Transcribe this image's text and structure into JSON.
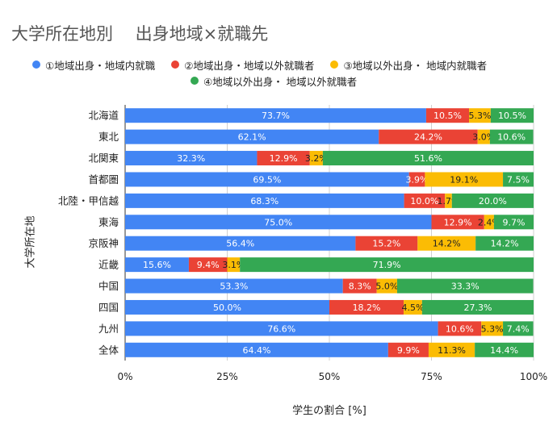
{
  "chart_data": {
    "type": "bar",
    "orientation": "horizontal",
    "stacked": "percent",
    "title": "大学所在地別　 出身地域×就職先",
    "xlabel": "学生の割合 [%]",
    "ylabel": "大学所在地",
    "xlim": [
      0,
      100
    ],
    "x_ticks": [
      "0%",
      "25%",
      "50%",
      "75%",
      "100%"
    ],
    "grid": true,
    "legend_position": "top",
    "categories": [
      "北海道",
      "東北",
      "北関東",
      "首都圏",
      "北陸・甲信越",
      "東海",
      "京阪神",
      "近畿",
      "中国",
      "四国",
      "九州",
      "全体"
    ],
    "series": [
      {
        "name": "①地域出身・地域内就職",
        "color": "#4285f4",
        "values": [
          73.7,
          62.1,
          32.3,
          69.5,
          68.3,
          75.0,
          56.4,
          15.6,
          53.3,
          50.0,
          76.6,
          64.4
        ],
        "labels": [
          "73.7%",
          "62.1%",
          "32.3%",
          "69.5%",
          "68.3%",
          "75.0%",
          "56.4%",
          "15.6%",
          "53.3%",
          "50.0%",
          "76.6%",
          "64.4%"
        ]
      },
      {
        "name": "②地域出身・地域以外就職者",
        "color": "#ea4335",
        "values": [
          10.5,
          24.2,
          12.9,
          3.9,
          10.0,
          12.9,
          15.2,
          9.4,
          8.3,
          18.2,
          10.6,
          9.9
        ],
        "labels": [
          "10.5%",
          "24.2%",
          "12.9%",
          "3.9%",
          "10.0%",
          "12.9%",
          "15.2%",
          "9.4%",
          "8.3%",
          "18.2%",
          "10.6%",
          "9.9%"
        ]
      },
      {
        "name": "③地域以外出身・ 地域内就職者",
        "color": "#fbbc04",
        "values": [
          5.3,
          3.0,
          3.2,
          19.1,
          1.7,
          2.4,
          14.2,
          3.1,
          5.0,
          4.5,
          5.3,
          11.3
        ],
        "labels": [
          "5.3%",
          "3.0%",
          "3.2%",
          "19.1%",
          "1.7%",
          "2.4%",
          "14.2%",
          "3.1%",
          "5.0%",
          "4.5%",
          "5.3%",
          "11.3%"
        ]
      },
      {
        "name": "④地域以外出身・ 地域以外就職者",
        "color": "#34a853",
        "values": [
          10.5,
          10.6,
          51.6,
          7.5,
          20.0,
          9.7,
          14.2,
          71.9,
          33.3,
          27.3,
          7.4,
          14.4
        ],
        "labels": [
          "10.5%",
          "10.6%",
          "51.6%",
          "7.5%",
          "20.0%",
          "9.7%",
          "14.2%",
          "71.9%",
          "33.3%",
          "27.3%",
          "7.4%",
          "14.4%"
        ]
      }
    ]
  }
}
